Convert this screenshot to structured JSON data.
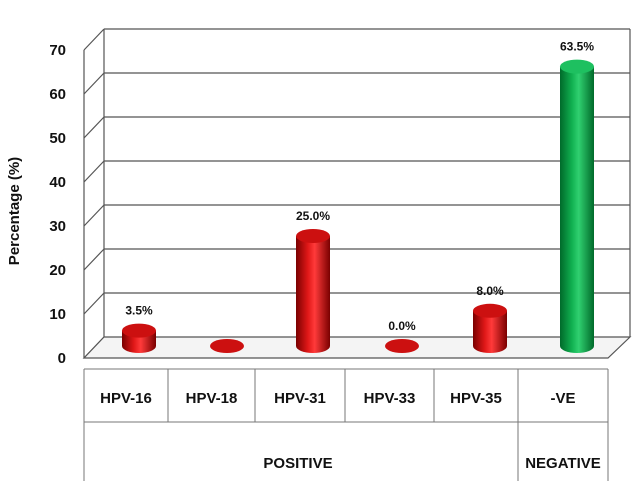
{
  "chart_data": {
    "type": "bar",
    "ylabel": "Percentage (%)",
    "xlabel": "",
    "ylim": [
      0,
      70
    ],
    "yticks": [
      0,
      10,
      20,
      30,
      40,
      50,
      60,
      70
    ],
    "grid": true,
    "categories": [
      "HPV-16",
      "HPV-18",
      "HPV-31",
      "HPV-33",
      "HPV-35",
      "-VE"
    ],
    "values": [
      3.5,
      0,
      25.0,
      0.0,
      8.0,
      63.5
    ],
    "data_labels": [
      "3.5%",
      "",
      "25.0%",
      "0.0%",
      "8.0%",
      "63.5%"
    ],
    "groups": [
      {
        "label": "POSITIVE",
        "categories": [
          "HPV-16",
          "HPV-18",
          "HPV-31",
          "HPV-33",
          "HPV-35"
        ]
      },
      {
        "label": "NEGATIVE",
        "categories": [
          "-VE"
        ]
      }
    ],
    "colors": {
      "positive": "#c00000",
      "negative": "#00a040",
      "grid": "#555555"
    }
  }
}
